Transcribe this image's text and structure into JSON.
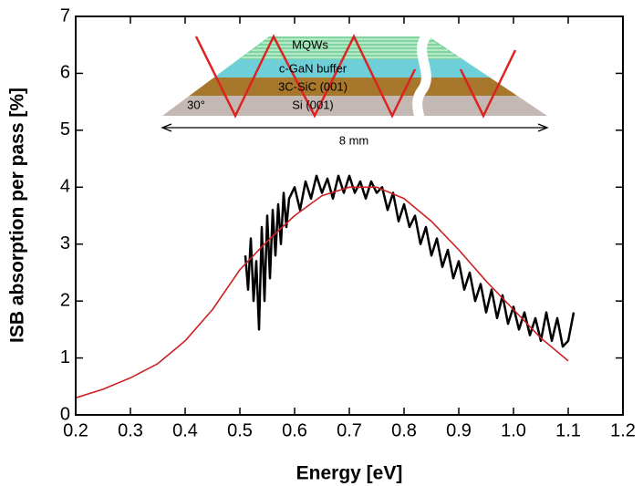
{
  "chart_data": {
    "type": "line",
    "xlabel": "Energy [eV]",
    "ylabel": "ISB absorption per pass [%]",
    "xlim": [
      0.2,
      1.2
    ],
    "xticks": [
      0.2,
      0.3,
      0.4,
      0.5,
      0.6,
      0.7,
      0.8,
      0.9,
      {
        "value": 1.0,
        "label": "1.0"
      },
      1.1,
      1.2
    ],
    "ylim": [
      0,
      7
    ],
    "yticks": [
      0,
      1,
      2,
      3,
      4,
      5,
      6,
      7
    ],
    "annotations": [
      "MQWs",
      "c-GaN buffer",
      "3C-SiC (001)",
      "Si (001)",
      "30°",
      "8 mm"
    ],
    "series": [
      {
        "color": "#000000",
        "x": [
          0.51,
          0.515,
          0.52,
          0.525,
          0.53,
          0.535,
          0.54,
          0.545,
          0.55,
          0.555,
          0.56,
          0.565,
          0.57,
          0.575,
          0.58,
          0.585,
          0.59,
          0.6,
          0.61,
          0.62,
          0.63,
          0.64,
          0.65,
          0.66,
          0.67,
          0.68,
          0.69,
          0.7,
          0.71,
          0.72,
          0.73,
          0.74,
          0.75,
          0.76,
          0.77,
          0.78,
          0.79,
          0.8,
          0.81,
          0.82,
          0.83,
          0.84,
          0.85,
          0.86,
          0.87,
          0.88,
          0.89,
          0.9,
          0.91,
          0.92,
          0.93,
          0.94,
          0.95,
          0.96,
          0.97,
          0.98,
          0.99,
          1.0,
          1.01,
          1.02,
          1.03,
          1.04,
          1.05,
          1.06,
          1.07,
          1.08,
          1.09,
          1.1,
          1.11
        ],
        "values": [
          2.8,
          2.2,
          3.1,
          2.0,
          2.7,
          1.5,
          3.3,
          2.0,
          3.5,
          2.4,
          3.6,
          2.8,
          3.7,
          3.0,
          3.9,
          3.3,
          3.8,
          4.0,
          3.6,
          4.1,
          3.8,
          4.2,
          3.9,
          4.15,
          3.8,
          4.2,
          3.9,
          4.2,
          3.9,
          4.1,
          3.8,
          4.1,
          3.9,
          4.0,
          3.6,
          3.9,
          3.4,
          3.7,
          3.3,
          3.5,
          3.0,
          3.3,
          2.8,
          3.1,
          2.6,
          2.9,
          2.4,
          2.7,
          2.2,
          2.5,
          2.0,
          2.3,
          1.8,
          2.2,
          1.7,
          2.1,
          1.6,
          1.9,
          1.5,
          1.8,
          1.4,
          1.7,
          1.3,
          1.8,
          1.3,
          1.7,
          1.2,
          1.3,
          1.8
        ]
      },
      {
        "color": "#cc2222",
        "x": [
          0.2,
          0.25,
          0.3,
          0.35,
          0.4,
          0.45,
          0.5,
          0.55,
          0.6,
          0.65,
          0.7,
          0.75,
          0.8,
          0.85,
          0.9,
          0.95,
          1.0,
          1.05,
          1.1
        ],
        "values": [
          0.3,
          0.45,
          0.65,
          0.9,
          1.3,
          1.85,
          2.55,
          3.05,
          3.5,
          3.85,
          4.0,
          4.0,
          3.8,
          3.4,
          2.9,
          2.35,
          1.85,
          1.35,
          0.95
        ]
      }
    ]
  }
}
